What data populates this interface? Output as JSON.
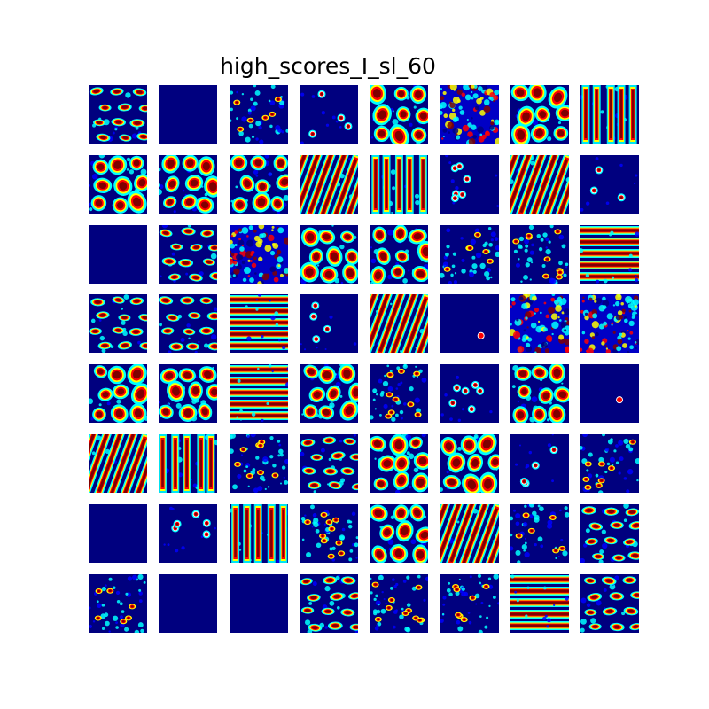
{
  "chart_data": {
    "type": "heatmap",
    "title": "high_scores_I_sl_60",
    "grid": {
      "rows": 8,
      "cols": 8
    },
    "colormap": "jet",
    "colors": {
      "low": "#00007f",
      "mid_low": "#0000ff",
      "mid": "#00ffff",
      "mid_high": "#ffff00",
      "high": "#ff0000",
      "max": "#7f0000"
    },
    "panels": [
      {
        "pattern": "blobs_h"
      },
      {
        "pattern": "blank"
      },
      {
        "pattern": "sparse"
      },
      {
        "pattern": "dots"
      },
      {
        "pattern": "blobs"
      },
      {
        "pattern": "noisy"
      },
      {
        "pattern": "blobs"
      },
      {
        "pattern": "stripes_v"
      },
      {
        "pattern": "blobs"
      },
      {
        "pattern": "blobs"
      },
      {
        "pattern": "blobs"
      },
      {
        "pattern": "stripes_d"
      },
      {
        "pattern": "stripes_v"
      },
      {
        "pattern": "dots"
      },
      {
        "pattern": "stripes_d"
      },
      {
        "pattern": "dots"
      },
      {
        "pattern": "blank"
      },
      {
        "pattern": "blobs_h"
      },
      {
        "pattern": "noisy"
      },
      {
        "pattern": "blobs"
      },
      {
        "pattern": "blobs"
      },
      {
        "pattern": "sparse"
      },
      {
        "pattern": "sparse"
      },
      {
        "pattern": "stripes_h"
      },
      {
        "pattern": "blobs_h"
      },
      {
        "pattern": "blobs_h"
      },
      {
        "pattern": "stripes_h"
      },
      {
        "pattern": "dots"
      },
      {
        "pattern": "stripes_d"
      },
      {
        "pattern": "blank_dot"
      },
      {
        "pattern": "noisy"
      },
      {
        "pattern": "noisy"
      },
      {
        "pattern": "blobs"
      },
      {
        "pattern": "blobs"
      },
      {
        "pattern": "stripes_h"
      },
      {
        "pattern": "blobs"
      },
      {
        "pattern": "sparse"
      },
      {
        "pattern": "dots"
      },
      {
        "pattern": "blobs"
      },
      {
        "pattern": "blank_dot"
      },
      {
        "pattern": "stripes_d"
      },
      {
        "pattern": "stripes_v"
      },
      {
        "pattern": "sparse"
      },
      {
        "pattern": "blobs_h"
      },
      {
        "pattern": "blobs"
      },
      {
        "pattern": "blobs"
      },
      {
        "pattern": "dots"
      },
      {
        "pattern": "sparse"
      },
      {
        "pattern": "blank"
      },
      {
        "pattern": "dots"
      },
      {
        "pattern": "stripes_v"
      },
      {
        "pattern": "sparse"
      },
      {
        "pattern": "blobs"
      },
      {
        "pattern": "stripes_d"
      },
      {
        "pattern": "sparse"
      },
      {
        "pattern": "blobs_h"
      },
      {
        "pattern": "sparse"
      },
      {
        "pattern": "blank"
      },
      {
        "pattern": "blank"
      },
      {
        "pattern": "blobs_h"
      },
      {
        "pattern": "sparse"
      },
      {
        "pattern": "sparse"
      },
      {
        "pattern": "stripes_h"
      },
      {
        "pattern": "blobs_h"
      }
    ]
  }
}
